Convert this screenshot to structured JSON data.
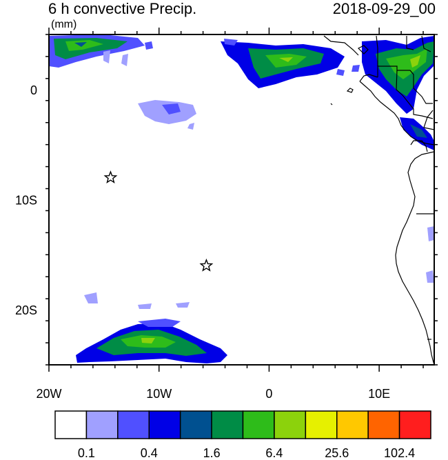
{
  "header": {
    "title": "6 h convective Precip.",
    "units": "(mm)",
    "valid_time": "2018-09-29_00"
  },
  "map": {
    "lon_range": [
      -20,
      15
    ],
    "lat_range": [
      -25,
      5
    ],
    "x_ticks": [
      {
        "value": -20,
        "label": "20W"
      },
      {
        "value": -10,
        "label": "10W"
      },
      {
        "value": 0,
        "label": "0"
      },
      {
        "value": 10,
        "label": "10E"
      }
    ],
    "y_ticks": [
      {
        "value": 0,
        "label": "0"
      },
      {
        "value": -10,
        "label": "10S"
      },
      {
        "value": -20,
        "label": "20S"
      }
    ],
    "markers": [
      {
        "name": "star-marker",
        "lon": -14.4,
        "lat": -8.0
      },
      {
        "name": "star-marker",
        "lon": -5.7,
        "lat": -16.0
      }
    ]
  },
  "colorbar": {
    "colors": [
      "#ffffff",
      "#a0a0ff",
      "#5050ff",
      "#0000e6",
      "#005090",
      "#008c46",
      "#2ebc1a",
      "#8cd20c",
      "#e6f000",
      "#ffc800",
      "#ff6400",
      "#ff1e1e"
    ],
    "labels": [
      "0.1",
      "0.4",
      "1.6",
      "6.4",
      "25.6",
      "102.4"
    ]
  }
}
